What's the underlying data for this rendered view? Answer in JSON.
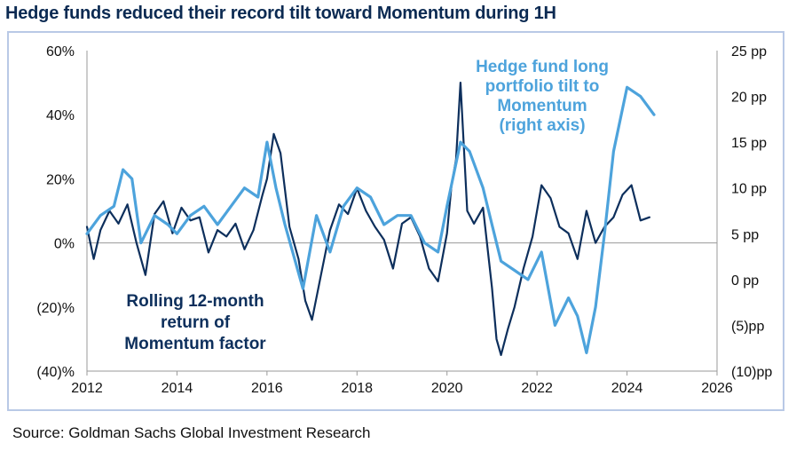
{
  "title": "Hedge funds reduced their record tilt toward Momentum during 1H",
  "source": "Source: Goldman Sachs Global Investment Research",
  "chart_data": {
    "type": "line",
    "x_axis": {
      "min": 2012,
      "max": 2026,
      "ticks": [
        "2012",
        "2014",
        "2016",
        "2018",
        "2020",
        "2022",
        "2024",
        "2026"
      ]
    },
    "y_left": {
      "min": -40,
      "max": 60,
      "ticks": [
        "60%",
        "40%",
        "20%",
        "0%",
        "(20)%",
        "(40)%"
      ],
      "tick_values": [
        60,
        40,
        20,
        0,
        -20,
        -40
      ]
    },
    "y_right": {
      "min": -10,
      "max": 25,
      "ticks": [
        "25 pp",
        "20 pp",
        "15 pp",
        "10 pp",
        "5 pp",
        "0 pp",
        "(5)pp",
        "(10)pp"
      ],
      "tick_values": [
        25,
        20,
        15,
        10,
        5,
        0,
        -5,
        -10
      ]
    },
    "annotations": {
      "momentum_label": [
        "Rolling 12-month",
        "return of",
        "Momentum factor"
      ],
      "hedge_label": [
        "Hedge fund long",
        "portfolio tilt to",
        "Momentum",
        "(right axis)"
      ]
    },
    "series": [
      {
        "key": "momentum",
        "axis": "left",
        "color": "#0d2f5c",
        "x": [
          2012.0,
          2012.15,
          2012.3,
          2012.5,
          2012.7,
          2012.9,
          2013.1,
          2013.3,
          2013.5,
          2013.7,
          2013.9,
          2014.1,
          2014.3,
          2014.5,
          2014.7,
          2014.9,
          2015.1,
          2015.3,
          2015.5,
          2015.7,
          2015.9,
          2016.0,
          2016.15,
          2016.3,
          2016.5,
          2016.7,
          2016.85,
          2017.0,
          2017.2,
          2017.4,
          2017.6,
          2017.8,
          2018.0,
          2018.2,
          2018.4,
          2018.6,
          2018.8,
          2019.0,
          2019.2,
          2019.4,
          2019.6,
          2019.8,
          2020.0,
          2020.1,
          2020.2,
          2020.3,
          2020.45,
          2020.6,
          2020.8,
          2021.0,
          2021.1,
          2021.2,
          2021.35,
          2021.5,
          2021.7,
          2021.9,
          2022.1,
          2022.3,
          2022.5,
          2022.7,
          2022.9,
          2023.1,
          2023.3,
          2023.5,
          2023.7,
          2023.9,
          2024.1,
          2024.3,
          2024.5
        ],
        "y": [
          5,
          -5,
          4,
          10,
          6,
          12,
          0,
          -10,
          9,
          13,
          3,
          11,
          7,
          8,
          -3,
          4,
          2,
          6,
          -2,
          4,
          15,
          20,
          34,
          28,
          5,
          -5,
          -18,
          -24,
          -10,
          4,
          12,
          9,
          17,
          10,
          5,
          1,
          -8,
          6,
          8,
          2,
          -8,
          -12,
          3,
          18,
          26,
          50,
          10,
          6,
          11,
          -14,
          -30,
          -35,
          -27,
          -20,
          -8,
          2,
          18,
          14,
          5,
          3,
          -5,
          10,
          0,
          5,
          8,
          15,
          18,
          7,
          8
        ]
      },
      {
        "key": "hedge_tilt",
        "axis": "right",
        "color": "#4da3dc",
        "x": [
          2012.0,
          2012.3,
          2012.6,
          2012.8,
          2013.0,
          2013.2,
          2013.5,
          2013.8,
          2014.0,
          2014.3,
          2014.6,
          2014.9,
          2015.2,
          2015.5,
          2015.8,
          2016.0,
          2016.2,
          2016.4,
          2016.8,
          2017.1,
          2017.4,
          2017.7,
          2018.0,
          2018.3,
          2018.6,
          2018.9,
          2019.2,
          2019.5,
          2019.8,
          2020.0,
          2020.3,
          2020.5,
          2020.8,
          2021.0,
          2021.2,
          2021.5,
          2021.8,
          2022.1,
          2022.4,
          2022.7,
          2022.9,
          2023.1,
          2023.3,
          2023.5,
          2023.7,
          2024.0,
          2024.3,
          2024.6
        ],
        "y": [
          5,
          7,
          8,
          12,
          11,
          4,
          7,
          6,
          5,
          7,
          8,
          6,
          8,
          10,
          9,
          15,
          10,
          6,
          -1,
          7,
          3,
          8,
          10,
          9,
          6,
          7,
          7,
          4,
          3,
          8,
          15,
          14,
          10,
          6,
          2,
          1,
          0,
          3,
          -5,
          -2,
          -4,
          -8,
          -3,
          5,
          14,
          21,
          20,
          18
        ]
      }
    ]
  }
}
